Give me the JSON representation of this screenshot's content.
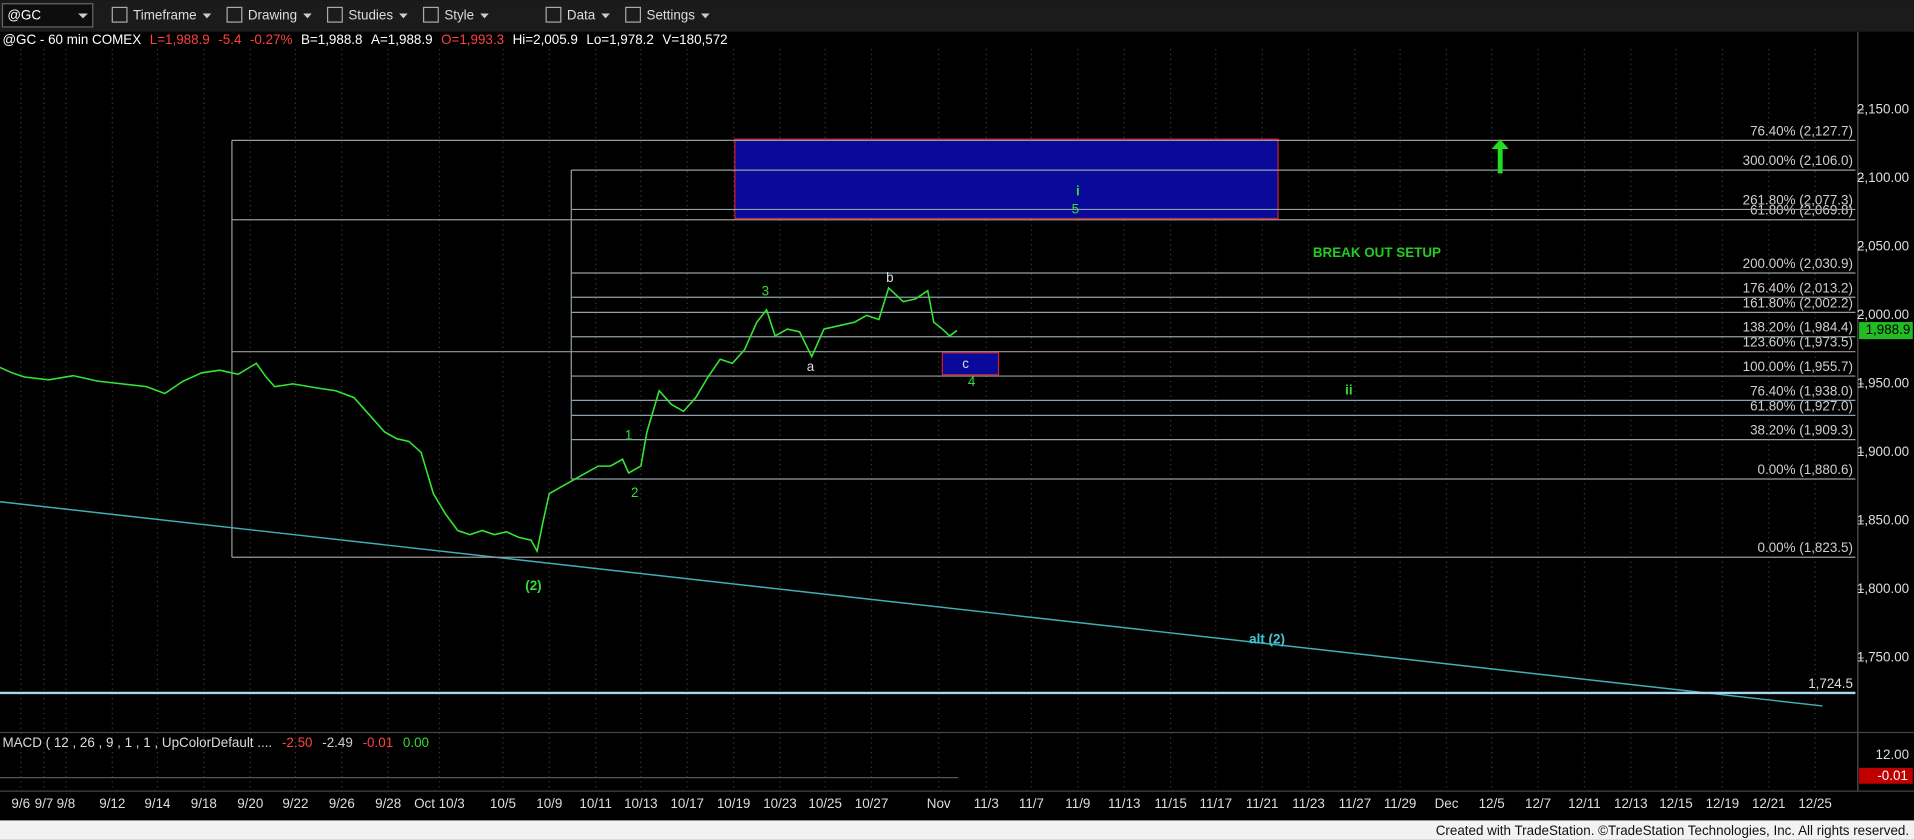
{
  "toolbar": {
    "symbol": "@GC",
    "items": [
      "Timeframe",
      "Drawing",
      "Studies",
      "Style",
      "Data",
      "Settings"
    ]
  },
  "status_bar": [
    {
      "text": "@GC - 60 min  COMEX",
      "color": "#ffffff"
    },
    {
      "text": "L=1,988.9",
      "color": "#ff4040"
    },
    {
      "text": "-5.4",
      "color": "#ff4040"
    },
    {
      "text": "-0.27%",
      "color": "#ff4040"
    },
    {
      "text": "B=1,988.8",
      "color": "#ffffff"
    },
    {
      "text": "A=1,988.9",
      "color": "#ffffff"
    },
    {
      "text": "O=1,993.3",
      "color": "#ff4040"
    },
    {
      "text": "Hi=2,005.9",
      "color": "#ffffff"
    },
    {
      "text": "Lo=1,978.2",
      "color": "#ffffff"
    },
    {
      "text": "V=180,572",
      "color": "#ffffff"
    }
  ],
  "chart_data": {
    "type": "line",
    "color": "#33e633",
    "x": [
      0,
      10,
      20,
      40,
      60,
      80,
      100,
      120,
      135,
      150,
      165,
      180,
      195,
      210,
      218,
      225,
      240,
      260,
      275,
      290,
      300,
      315,
      325,
      335,
      345,
      355,
      365,
      375,
      385,
      395,
      405,
      415,
      425,
      435,
      440,
      445,
      450,
      460,
      470,
      480,
      490,
      500,
      510,
      515,
      525,
      530,
      540,
      550,
      560,
      570,
      580,
      590,
      600,
      610,
      620,
      628,
      635,
      645,
      655,
      665,
      675,
      690,
      700,
      710,
      720,
      728,
      740,
      750,
      760,
      765,
      772,
      778,
      784
    ],
    "values": [
      1962,
      1958,
      1955,
      1953,
      1956,
      1952,
      1950,
      1948,
      1943,
      1952,
      1958,
      1960,
      1957,
      1965,
      1955,
      1948,
      1950,
      1947,
      1945,
      1940,
      1930,
      1915,
      1910,
      1908,
      1900,
      1870,
      1855,
      1843,
      1840,
      1843,
      1840,
      1842,
      1838,
      1836,
      1828,
      1850,
      1870,
      1875,
      1880,
      1885,
      1890,
      1890,
      1895,
      1885,
      1890,
      1915,
      1945,
      1935,
      1930,
      1940,
      1955,
      1968,
      1965,
      1975,
      1995,
      2004,
      1985,
      1990,
      1988,
      1970,
      1990,
      1993,
      1995,
      2000,
      1997,
      2020,
      2010,
      2012,
      2018,
      1995,
      1990,
      1985,
      1989
    ],
    "xlim": [
      0,
      1520
    ],
    "ylim": [
      1695,
      2206
    ],
    "xticks": [
      {
        "value": 17,
        "label": "9/6"
      },
      {
        "value": 36,
        "label": "9/7"
      },
      {
        "value": 54,
        "label": "9/8"
      },
      {
        "value": 92,
        "label": "9/12"
      },
      {
        "value": 129,
        "label": "9/14"
      },
      {
        "value": 167,
        "label": "9/18"
      },
      {
        "value": 205,
        "label": "9/20"
      },
      {
        "value": 242,
        "label": "9/22"
      },
      {
        "value": 280,
        "label": "9/26"
      },
      {
        "value": 318,
        "label": "9/28"
      },
      {
        "value": 360,
        "label": "Oct 10/3"
      },
      {
        "value": 412,
        "label": "10/5"
      },
      {
        "value": 450,
        "label": "10/9"
      },
      {
        "value": 488,
        "label": "10/11"
      },
      {
        "value": 525,
        "label": "10/13"
      },
      {
        "value": 563,
        "label": "10/17"
      },
      {
        "value": 601,
        "label": "10/19"
      },
      {
        "value": 639,
        "label": "10/23"
      },
      {
        "value": 676,
        "label": "10/25"
      },
      {
        "value": 714,
        "label": "10/27"
      },
      {
        "value": 769,
        "label": "Nov"
      },
      {
        "value": 808,
        "label": "11/3"
      },
      {
        "value": 845,
        "label": "11/7"
      },
      {
        "value": 883,
        "label": "11/9"
      },
      {
        "value": 921,
        "label": "11/13"
      },
      {
        "value": 959,
        "label": "11/15"
      },
      {
        "value": 996,
        "label": "11/17"
      },
      {
        "value": 1034,
        "label": "11/21"
      },
      {
        "value": 1072,
        "label": "11/23"
      },
      {
        "value": 1110,
        "label": "11/27"
      },
      {
        "value": 1147,
        "label": "11/29"
      },
      {
        "value": 1185,
        "label": "Dec"
      },
      {
        "value": 1222,
        "label": "12/5"
      },
      {
        "value": 1260,
        "label": "12/7"
      },
      {
        "value": 1298,
        "label": "12/11"
      },
      {
        "value": 1336,
        "label": "12/13"
      },
      {
        "value": 1373,
        "label": "12/15"
      },
      {
        "value": 1411,
        "label": "12/19"
      },
      {
        "value": 1449,
        "label": "12/21"
      },
      {
        "value": 1487,
        "label": "12/25"
      }
    ],
    "yticks": [
      {
        "value": 2150,
        "label": "2,150.00"
      },
      {
        "value": 2100,
        "label": "2,100.00"
      },
      {
        "value": 2050,
        "label": "2,050.00"
      },
      {
        "value": 2000,
        "label": "2,000.00"
      },
      {
        "value": 1950,
        "label": "1,950.00"
      },
      {
        "value": 1900,
        "label": "1,900.00"
      },
      {
        "value": 1850,
        "label": "1,850.00"
      },
      {
        "value": 1800,
        "label": "1,800.00"
      },
      {
        "value": 1750,
        "label": "1,750.00"
      }
    ],
    "grid": true,
    "last_price": {
      "value": 1988.9,
      "label": "1,988.9"
    },
    "fib_groups": [
      {
        "start": 190,
        "color": "#9a9a9a",
        "levels": [
          {
            "value": 2127.7,
            "label": "76.40% (2,127.7)"
          },
          {
            "value": 2069.8,
            "label": "61.80% (2,069.8)"
          },
          {
            "value": 1973.5,
            "label": "123.60% (1,973.5)"
          },
          {
            "value": 1823.5,
            "label": "0.00% (1,823.5)"
          }
        ]
      },
      {
        "start": 468,
        "color": "#8fa0a8",
        "levels": [
          {
            "value": 2106.0,
            "label": "300.00% (2,106.0)"
          },
          {
            "value": 2077.3,
            "label": "261.80% (2,077.3)"
          },
          {
            "value": 2030.9,
            "label": "200.00% (2,030.9)"
          },
          {
            "value": 2013.2,
            "label": "176.40% (2,013.2)"
          },
          {
            "value": 2002.2,
            "label": "161.80% (2,002.2)"
          },
          {
            "value": 1984.4,
            "label": "138.20% (1,984.4)"
          },
          {
            "value": 1955.7,
            "label": "100.00% (1,955.7)"
          },
          {
            "value": 1938.0,
            "label": "76.40% (1,938.0)"
          },
          {
            "value": 1927.0,
            "label": "61.80% (1,927.0)"
          },
          {
            "value": 1909.3,
            "label": "38.20% (1,909.3)"
          },
          {
            "value": 1880.6,
            "label": "0.00% (1,880.6)"
          }
        ]
      }
    ],
    "support": {
      "value": 1724.5,
      "label": "1,724.5",
      "color": "#a8d8ee"
    },
    "trendline": {
      "x": [
        0,
        1493
      ],
      "values": [
        1864,
        1715
      ],
      "color": "#40b0b8"
    },
    "boxes": [
      {
        "x": [
          602,
          1047
        ],
        "values": [
          2128.6,
          2070.7
        ],
        "fill": "#0a0a9a",
        "stroke": "#d02030"
      },
      {
        "x": [
          772,
          818
        ],
        "values": [
          1972.7,
          1956.7
        ],
        "fill": "#0a0a9a",
        "stroke": "#d02030"
      }
    ],
    "annotations": [
      {
        "text": "i",
        "x": 883,
        "y": 2090,
        "color": "#33dd33",
        "bold": true
      },
      {
        "text": "5",
        "x": 881,
        "y": 2077,
        "color": "#33dd33",
        "bold": false
      },
      {
        "text": "BREAK OUT SETUP",
        "x": 1128,
        "y": 2045,
        "color": "#22cc22",
        "bold": true
      },
      {
        "text": "3",
        "x": 627,
        "y": 2017,
        "color": "#33dd33",
        "bold": false
      },
      {
        "text": "b",
        "x": 729,
        "y": 2027,
        "color": "#dddddd",
        "bold": false
      },
      {
        "text": "a",
        "x": 664,
        "y": 1962,
        "color": "#dddddd",
        "bold": false
      },
      {
        "text": "c",
        "x": 791,
        "y": 1964,
        "color": "#dddddd",
        "bold": false
      },
      {
        "text": "4",
        "x": 796,
        "y": 1951,
        "color": "#33dd33",
        "bold": false
      },
      {
        "text": "ii",
        "x": 1105,
        "y": 1945,
        "color": "#33dd33",
        "bold": true
      },
      {
        "text": "1",
        "x": 515,
        "y": 1912,
        "color": "#33dd33",
        "bold": false
      },
      {
        "text": "2",
        "x": 520,
        "y": 1870,
        "color": "#33dd33",
        "bold": false
      },
      {
        "text": "(2)",
        "x": 437,
        "y": 1802,
        "color": "#33dd33",
        "bold": true
      },
      {
        "text": "alt (2)",
        "x": 1038,
        "y": 1763,
        "color": "#40c8d8",
        "bold": true
      }
    ],
    "macd": {
      "title": "MACD ( 12 , 26 , 9 , 1 , 1 , UpColorDefault ....",
      "readings": [
        {
          "text": "-2.50",
          "color": "#ff4040"
        },
        {
          "text": "-2.49",
          "color": "#cccccc"
        },
        {
          "text": "-0.01",
          "color": "#ff4040"
        },
        {
          "text": "0.00",
          "color": "#33dd33"
        }
      ],
      "axis_label": "12.00",
      "last_label": "-0.01"
    }
  },
  "footer": "Created with TradeStation. ©TradeStation Technologies, Inc. All rights reserved."
}
